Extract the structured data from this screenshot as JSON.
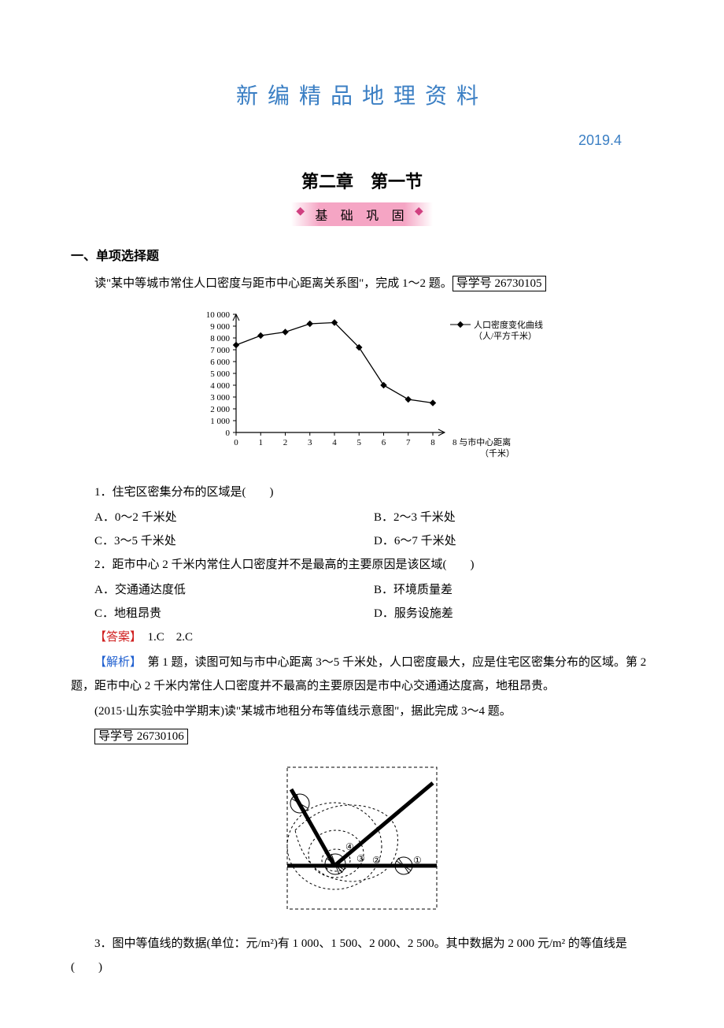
{
  "header": {
    "title": "新编精品地理资料",
    "date": "2019.4"
  },
  "chapter": {
    "title": "第二章　第一节",
    "banner": "基 础 巩 固"
  },
  "section1": {
    "heading": "一、单项选择题",
    "intro_prefix": "读\"某中等城市常住人口密度与距市中心距离关系图\"，完成 1～2 题。",
    "study_code": "导学号 26730105"
  },
  "chart1": {
    "type": "line-scatter",
    "legend": "人口密度变化曲线",
    "y_unit": "（人/平方千米）",
    "x_label": "8 与市中心距离",
    "x_sublabel": "（千米）",
    "x_ticks": [
      0,
      1,
      2,
      3,
      4,
      5,
      6,
      7,
      8
    ],
    "y_ticks": [
      0,
      1000,
      2000,
      3000,
      4000,
      5000,
      6000,
      7000,
      8000,
      9000,
      10000
    ],
    "y_labels": [
      "0",
      "1 000",
      "2 000",
      "3 000",
      "4 000",
      "5 000",
      "6 000",
      "7 000",
      "8 000",
      "9 000",
      "10 000"
    ],
    "points": [
      {
        "x": 0,
        "y": 7400
      },
      {
        "x": 1,
        "y": 8200
      },
      {
        "x": 2,
        "y": 8500
      },
      {
        "x": 3,
        "y": 9200
      },
      {
        "x": 4,
        "y": 9300
      },
      {
        "x": 5,
        "y": 7200
      },
      {
        "x": 6,
        "y": 4000
      },
      {
        "x": 7,
        "y": 2800
      },
      {
        "x": 8,
        "y": 2500
      }
    ],
    "marker_color": "#000000",
    "line_color": "#000000",
    "background": "#ffffff",
    "axis_font": 11
  },
  "q1": {
    "text": "1．住宅区密集分布的区域是(　　)",
    "A": "A．0～2 千米处",
    "B": "B．2～3 千米处",
    "C": "C．3～5 千米处",
    "D": "D．6～7 千米处"
  },
  "q2": {
    "text": "2．距市中心 2 千米内常住人口密度并不是最高的主要原因是该区域(　　)",
    "A": "A．交通通达度低",
    "B": "B．环境质量差",
    "C": "C．地租昂贵",
    "D": "D．服务设施差"
  },
  "answers12": {
    "label": "【答案】",
    "text": "　1.C　2.C"
  },
  "explain12": {
    "label": "【解析】",
    "text": "　第 1 题，读图可知与市中心距离 3～5 千米处，人口密度最大，应是住宅区密集分布的区域。第 2 题，距市中心 2 千米内常住人口密度并不最高的主要原因是市中心交通通达度高，地租昂贵。"
  },
  "section2": {
    "intro": "(2015·山东实验中学期末)读\"某城市地租分布等值线示意图\"，据此完成 3～4 题。",
    "study_code": "导学号 26730106"
  },
  "diagram2": {
    "type": "contour-map",
    "description": "城市地租等值线图，含三条主干道交汇和4条等值线，标注①②③④",
    "labels": [
      "①",
      "②",
      "③",
      "④"
    ],
    "line_color": "#000000",
    "background": "#ffffff"
  },
  "q3": {
    "text": "3．图中等值线的数据(单位：元/m²)有 1 000、1 500、2 000、2 500。其中数据为 2 000 元/m² 的等值线是(　　)"
  }
}
